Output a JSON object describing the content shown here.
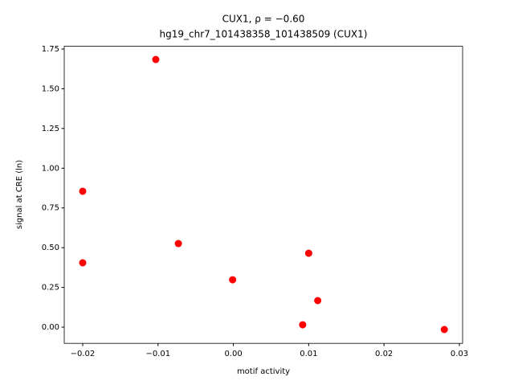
{
  "chart_data": {
    "type": "scatter",
    "title": "CUX1, ρ = −0.60",
    "subtitle": "hg19_chr7_101438358_101438509 (CUX1)",
    "x_label": "motif activity",
    "y_label": "signal at CRE (ln)",
    "color": "#ff0000",
    "series": [
      {
        "x": [
          -0.0103,
          -0.02,
          -0.02,
          -0.0073,
          -0.0001,
          0.01,
          0.0112,
          0.0092,
          0.028
        ],
        "values": [
          1.684,
          0.855,
          0.405,
          0.526,
          0.298,
          0.465,
          0.167,
          0.015,
          -0.015
        ]
      }
    ],
    "xlim": [
      -0.02245,
      0.03043
    ],
    "ylim": [
      -0.102,
      1.767
    ],
    "xticks": [
      {
        "value": -0.02,
        "label": "−0.02"
      },
      {
        "value": -0.01,
        "label": "−0.01"
      },
      {
        "value": 0,
        "label": "0.00"
      },
      {
        "value": 0.01,
        "label": "0.01"
      },
      {
        "value": 0.02,
        "label": "0.02"
      },
      {
        "value": 0.03,
        "label": "0.03"
      }
    ],
    "yticks": [
      {
        "value": 0,
        "label": "0.00"
      },
      0.25,
      {
        "value": 0.5,
        "label": "0.50"
      },
      0.75,
      {
        "value": 1,
        "label": "1.00"
      },
      1.25,
      {
        "value": 1.5,
        "label": "1.50"
      },
      1.75
    ],
    "grid": false
  }
}
